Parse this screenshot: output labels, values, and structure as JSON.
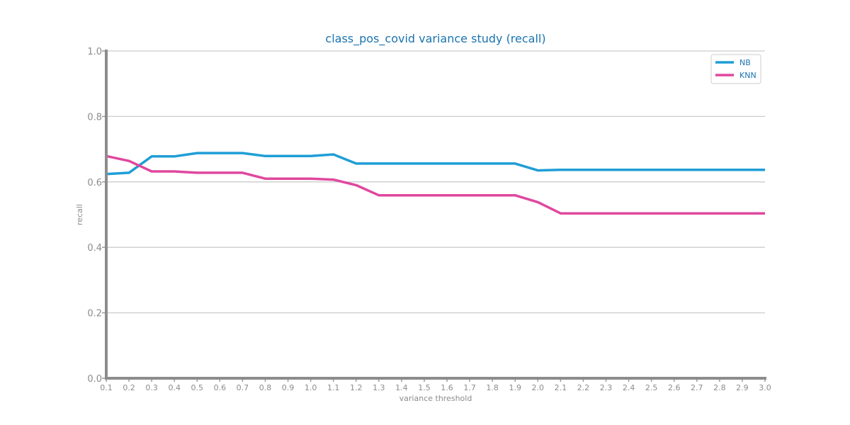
{
  "chart_data": {
    "type": "line",
    "title": "class_pos_covid variance study (recall)",
    "xlabel": "variance threshold",
    "ylabel": "recall",
    "x": [
      0.1,
      0.2,
      0.3,
      0.4,
      0.5,
      0.6,
      0.7,
      0.8,
      0.9,
      1.0,
      1.1,
      1.2,
      1.3,
      1.4,
      1.5,
      1.6,
      1.7,
      1.8,
      1.9,
      2.0,
      2.1,
      2.2,
      2.3,
      2.4,
      2.5,
      2.6,
      2.7,
      2.8,
      2.9,
      3.0
    ],
    "x_tick_labels": [
      "0.1",
      "0.2",
      "0.3",
      "0.4",
      "0.5",
      "0.6",
      "0.7",
      "0.8",
      "0.9",
      "1.0",
      "1.1",
      "1.2",
      "1.3",
      "1.4",
      "1.5",
      "1.6",
      "1.7",
      "1.8",
      "1.9",
      "2.0",
      "2.1",
      "2.2",
      "2.3",
      "2.4",
      "2.5",
      "2.6",
      "2.7",
      "2.8",
      "2.9",
      "3.0"
    ],
    "y_tick_labels": [
      "0.0",
      "0.2",
      "0.4",
      "0.6",
      "0.8",
      "1.0"
    ],
    "ylim": [
      0,
      1
    ],
    "xlim": [
      0.1,
      3.0
    ],
    "grid": "horizontal",
    "legend_position": "top-right",
    "series": [
      {
        "name": "NB",
        "color": "#1f9ed6",
        "values": [
          0.624,
          0.628,
          0.678,
          0.678,
          0.688,
          0.688,
          0.688,
          0.679,
          0.679,
          0.679,
          0.684,
          0.656,
          0.656,
          0.656,
          0.656,
          0.656,
          0.656,
          0.656,
          0.656,
          0.635,
          0.637,
          0.637,
          0.637,
          0.637,
          0.637,
          0.637,
          0.637,
          0.637,
          0.637,
          0.637
        ]
      },
      {
        "name": "KNN",
        "color": "#e0479e",
        "values": [
          0.679,
          0.664,
          0.632,
          0.632,
          0.628,
          0.628,
          0.628,
          0.61,
          0.61,
          0.61,
          0.607,
          0.59,
          0.559,
          0.559,
          0.559,
          0.559,
          0.559,
          0.559,
          0.559,
          0.538,
          0.504,
          0.504,
          0.504,
          0.504,
          0.504,
          0.504,
          0.504,
          0.504,
          0.504,
          0.504
        ]
      }
    ]
  }
}
